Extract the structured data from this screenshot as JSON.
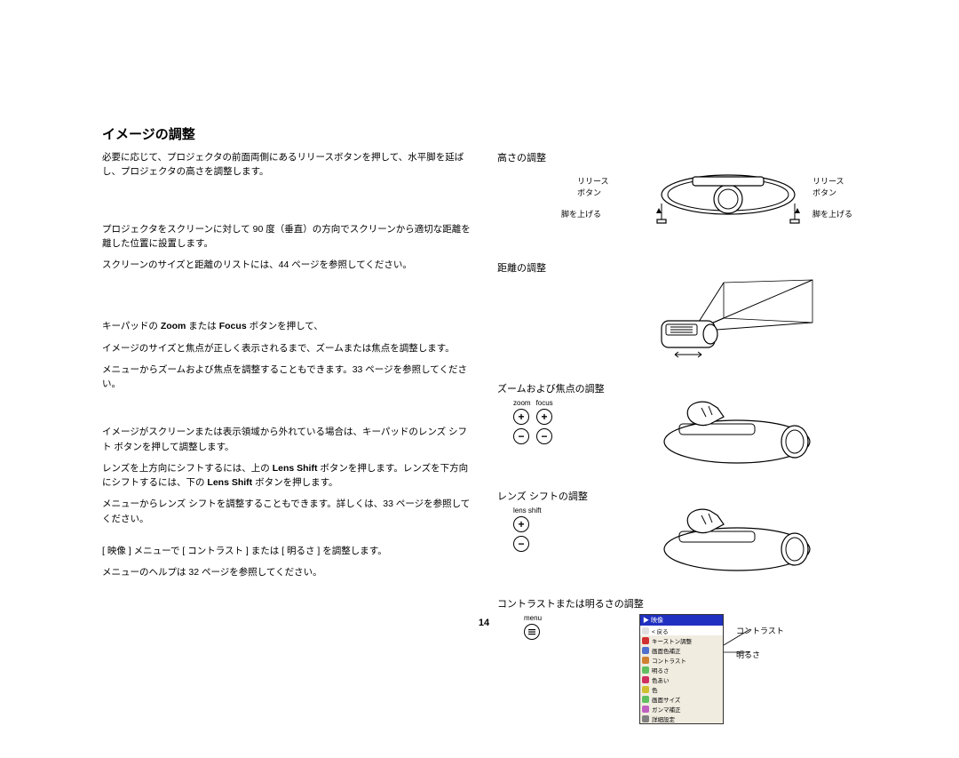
{
  "title": "イメージの調整",
  "left": {
    "p1": "必要に応じて、プロジェクタの前面両側にあるリリースボタンを押して、水平脚を延ばし、プロジェクタの高さを調整します。",
    "p2": "プロジェクタをスクリーンに対して 90 度（垂直）の方向でスクリーンから適切な距離を離した位置に設置します。",
    "p3": "スクリーンのサイズと距離のリストには、44 ページを参照してください。",
    "p4a": "キーパッドの ",
    "p4b": "Zoom",
    "p4c": " または ",
    "p4d": "Focus",
    "p4e": " ボタンを押して、",
    "p5": "イメージのサイズと焦点が正しく表示されるまで、ズームまたは焦点を調整します。",
    "p6": "メニューからズームおよび焦点を調整することもできます。33 ページを参照してください。",
    "p7": "イメージがスクリーンまたは表示領域から外れている場合は、キーパッドのレンズ シフト ボタンを押して調整します。",
    "p8a": "レンズを上方向にシフトするには、上の ",
    "p8b": "Lens Shift",
    "p8c": " ボタンを押します。レンズを下方向にシフトするには、下の ",
    "p8d": "Lens Shift",
    "p8e": " ボタンを押します。",
    "p9": "メニューからレンズ シフトを調整することもできます。詳しくは、33 ページを参照してください。",
    "p10": "[ 映像 ] メニューで [ コントラスト ] または [ 明るさ ] を調整します。",
    "p11": "メニューのヘルプは 32 ページを参照してください。"
  },
  "right": {
    "h1": "高さの調整",
    "release_btn": "リリース\nボタン",
    "raise_leg": "脚を上げる",
    "h2": "距離の調整",
    "h3": "ズームおよび焦点の調整",
    "zoom": "zoom",
    "focus": "focus",
    "h4": "レンズ シフトの調整",
    "lens_shift": "lens shift",
    "h5": "コントラストまたは明るさの調整",
    "menu_label": "menu",
    "contrast": "コントラスト",
    "brightness": "明るさ"
  },
  "menu": {
    "header": "▶ 映像",
    "items": [
      {
        "icon": "#e0e0e0",
        "label": "< 戻る"
      },
      {
        "icon": "#d03030",
        "label": "キーストン調整"
      },
      {
        "icon": "#5070d0",
        "label": "画面色補正"
      },
      {
        "icon": "#d08030",
        "label": "コントラスト"
      },
      {
        "icon": "#60c060",
        "label": "明るさ"
      },
      {
        "icon": "#d03060",
        "label": "色あい"
      },
      {
        "icon": "#d0c030",
        "label": "色"
      },
      {
        "icon": "#60c060",
        "label": "画面サイズ"
      },
      {
        "icon": "#c060c0",
        "label": "ガンマ補正"
      },
      {
        "icon": "#808080",
        "label": "詳細設定"
      }
    ]
  },
  "page_number": "14",
  "colors": {
    "text": "#000000",
    "bg": "#ffffff",
    "menu_blue": "#2030c0"
  }
}
